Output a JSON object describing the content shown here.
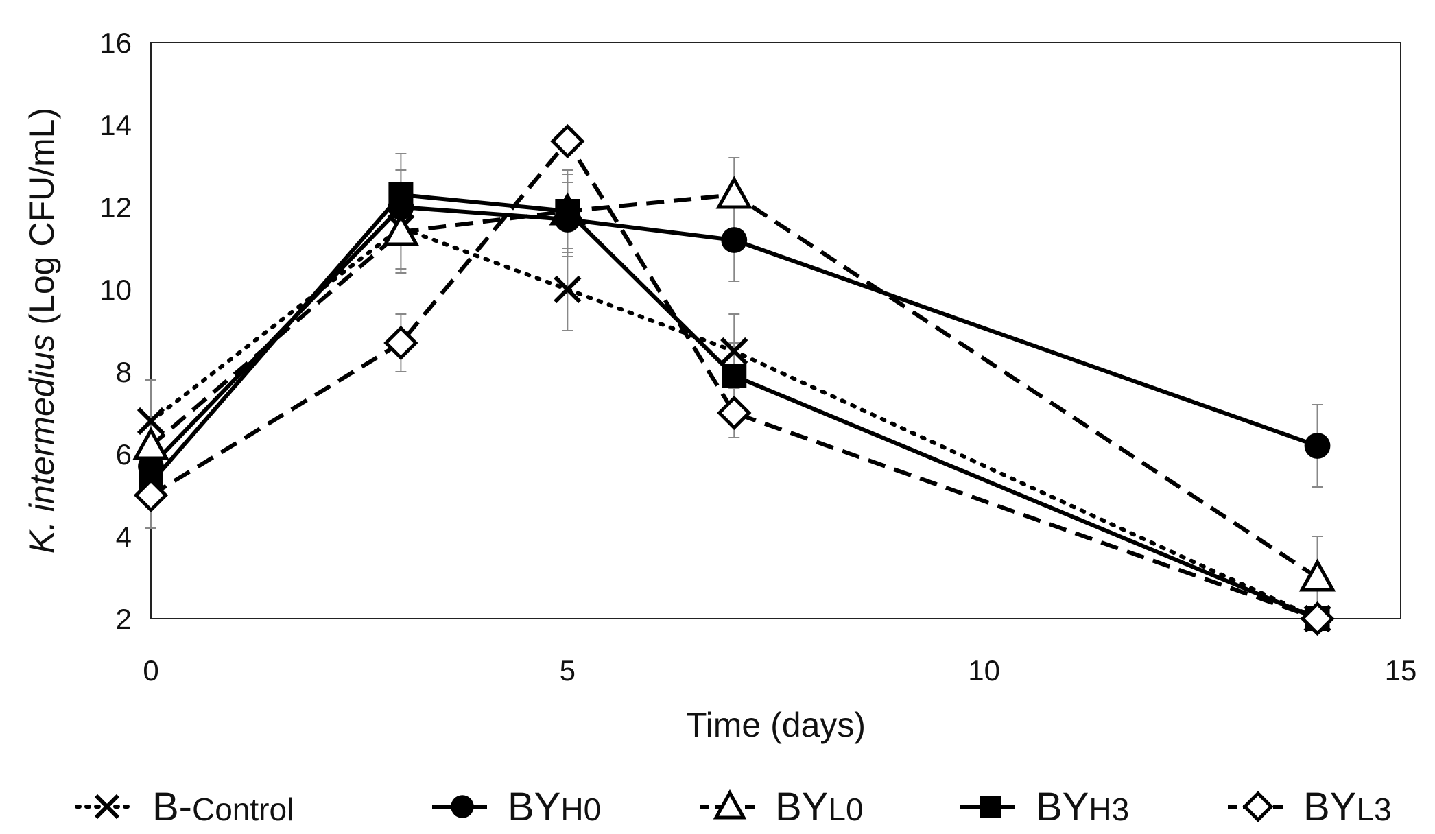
{
  "chart_data": {
    "type": "line",
    "title": "",
    "xlabel": "Time (days)",
    "ylabel": {
      "italic_part": "K. intermedius",
      "rest": " (Log CFU/mL)"
    },
    "xlim": [
      0,
      15
    ],
    "ylim": [
      2,
      16
    ],
    "xticks": [
      0,
      5,
      10,
      15
    ],
    "yticks": [
      2,
      4,
      6,
      8,
      10,
      12,
      14,
      16
    ],
    "grid": false,
    "legend_position": "bottom",
    "series": [
      {
        "name": "B-Control",
        "legend_prefix": "B-",
        "legend_suffix": "Control",
        "marker": "x",
        "line_style": "dotted",
        "x": [
          0,
          3,
          5,
          7,
          14
        ],
        "y": [
          6.8,
          11.5,
          10,
          8.5,
          2
        ],
        "err": [
          1,
          1,
          1,
          0.9,
          0.2
        ]
      },
      {
        "name": "BYH0",
        "legend_prefix": "BY",
        "legend_suffix": "H0",
        "marker": "circle-filled",
        "line_style": "solid",
        "x": [
          0,
          3,
          5,
          7,
          14
        ],
        "y": [
          5.7,
          12,
          11.7,
          11.2,
          6.2
        ],
        "err": [
          0.7,
          0.9,
          0.9,
          1,
          1
        ]
      },
      {
        "name": "BYL0",
        "legend_prefix": "BY",
        "legend_suffix": "L0",
        "marker": "triangle-open",
        "line_style": "dashed",
        "x": [
          0,
          3,
          5,
          7,
          14
        ],
        "y": [
          6.2,
          11.4,
          11.9,
          12.3,
          3
        ],
        "err": [
          0.7,
          1,
          1,
          0.9,
          1
        ]
      },
      {
        "name": "BYH3",
        "legend_prefix": "BY",
        "legend_suffix": "H3",
        "marker": "square-filled",
        "line_style": "solid",
        "x": [
          0,
          3,
          5,
          7,
          14
        ],
        "y": [
          5.3,
          12.3,
          11.9,
          7.9,
          2
        ],
        "err": [
          0.6,
          1,
          0.9,
          0.8,
          0.2
        ]
      },
      {
        "name": "BYL3",
        "legend_prefix": "BY",
        "legend_suffix": "L3",
        "marker": "diamond-open",
        "line_style": "dashed",
        "x": [
          0,
          3,
          5,
          7,
          14
        ],
        "y": [
          5,
          8.7,
          13.6,
          7,
          2
        ],
        "err": [
          0.8,
          0.7,
          0.3,
          0.6,
          0.2
        ]
      }
    ]
  }
}
